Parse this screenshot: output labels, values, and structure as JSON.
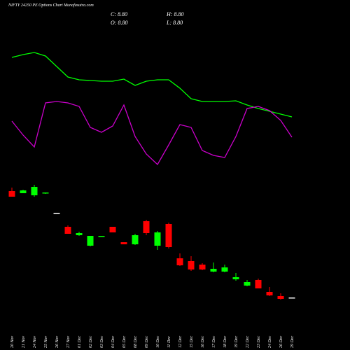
{
  "chart_data": {
    "type": "candlestick",
    "title": "NIFTY 24250  PE Options  Chart Munafasutra.com",
    "close_label": "C: 8.80",
    "high_label": "H: 8.80",
    "open_label": "O: 8.80",
    "low_label": "L: 8.80",
    "categories": [
      "20 Nov",
      "21 Nov",
      "24 Nov",
      "25 Nov",
      "26 Nov",
      "27 Nov",
      "01 Dec",
      "02 Dec",
      "03 Dec",
      "04 Dec",
      "05 Dec",
      "08 Dec",
      "09 Dec",
      "10 Dec",
      "11 Dec",
      "12 Dec",
      "15 Dec",
      "16 Dec",
      "17 Dec",
      "18 Dec",
      "19 Dec",
      "22 Dec",
      "23 Dec",
      "24 Dec",
      "26 Dec",
      "29 Dec"
    ],
    "open": [
      39.2,
      38.6,
      38,
      38.6,
      33,
      29,
      26.6,
      23.6,
      26.2,
      29,
      24.6,
      24,
      30.6,
      23.6,
      29.8,
      20,
      19.2,
      18.2,
      16.2,
      16.2,
      14,
      12.2,
      13.8,
      10.4,
      9.2,
      8.8
    ],
    "high": [
      40.2,
      39.6,
      41,
      38.8,
      33,
      29.4,
      27.6,
      26.4,
      26.4,
      29,
      24.6,
      27,
      31,
      27.8,
      30.2,
      21.4,
      20.6,
      18.6,
      18.8,
      18.2,
      15.8,
      13.8,
      14.2,
      11.8,
      10,
      8.8
    ],
    "low": [
      37.6,
      38.6,
      37.6,
      38.4,
      33,
      27,
      26.4,
      23.4,
      26.2,
      27.4,
      24,
      23.8,
      26.6,
      22.4,
      22.8,
      17.8,
      16.4,
      16.6,
      16,
      16,
      13.6,
      12,
      11.4,
      9.2,
      8.2,
      8.8
    ],
    "close": [
      37.6,
      39.4,
      40.4,
      38.8,
      33,
      27,
      27.2,
      26.4,
      26.4,
      27.4,
      24,
      26.6,
      27.2,
      27.4,
      23.2,
      18,
      16.8,
      16.8,
      17,
      17.4,
      14.6,
      13.2,
      11.4,
      9.4,
      8.4,
      8.8
    ],
    "ylim": [
      0,
      60
    ],
    "up_color": "#00ff00",
    "down_color": "#ff0000",
    "flat_color": "#ffffff",
    "series": [
      {
        "color": "#00ff00",
        "axis": "y2",
        "values": [
          168,
          172,
          175,
          170,
          155,
          140,
          136,
          135,
          134,
          134,
          137,
          128,
          134,
          136,
          136,
          124,
          109,
          105,
          105,
          105,
          106,
          100,
          95,
          91,
          87,
          83
        ]
      },
      {
        "color": "#cc00cc",
        "axis": "y2",
        "values": [
          77,
          57,
          40,
          103,
          105,
          103,
          98,
          68,
          61,
          70,
          100,
          55,
          30,
          15,
          43,
          72,
          68,
          35,
          28,
          25,
          55,
          95,
          98,
          92,
          78,
          54
        ]
      }
    ],
    "y2lim": [
      0,
      200
    ]
  }
}
